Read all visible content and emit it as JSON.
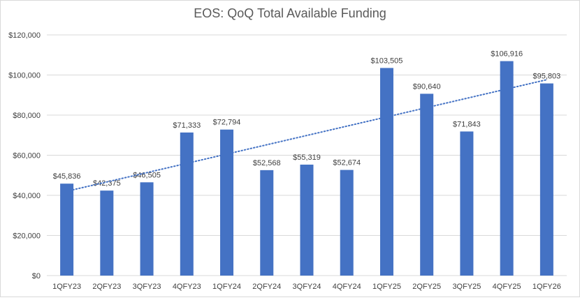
{
  "chart_data": {
    "type": "bar",
    "title": "EOS: QoQ Total Available Funding",
    "xlabel": "",
    "ylabel": "",
    "categories": [
      "1QFY23",
      "2QFY23",
      "3QFY23",
      "4QFY23",
      "1QFY24",
      "2QFY24",
      "3QFY24",
      "4QFY24",
      "1QFY25",
      "2QFY25",
      "3QFY25",
      "4QFY25",
      "1QFY26"
    ],
    "values": [
      45836,
      42375,
      46505,
      71333,
      72794,
      52568,
      55319,
      52674,
      103505,
      90640,
      71843,
      106916,
      95803
    ],
    "data_labels": [
      "$45,836",
      "$42,375",
      "$46,505",
      "$71,333",
      "$72,794",
      "$52,568",
      "$55,319",
      "$52,674",
      "$103,505",
      "$90,640",
      "$71,843",
      "$106,916",
      "$95,803"
    ],
    "ylim": [
      0,
      120000
    ],
    "yticks": [
      0,
      20000,
      40000,
      60000,
      80000,
      100000,
      120000
    ],
    "ytick_labels": [
      "$0",
      "$20,000",
      "$40,000",
      "$60,000",
      "$80,000",
      "$100,000",
      "$120,000"
    ],
    "trendline": "linear",
    "grid": true,
    "legend": "none",
    "colors": {
      "bar": "#4472c4",
      "trendline": "#4472c4",
      "grid": "#d9d9d9",
      "text": "#404040",
      "title": "#595959"
    }
  }
}
